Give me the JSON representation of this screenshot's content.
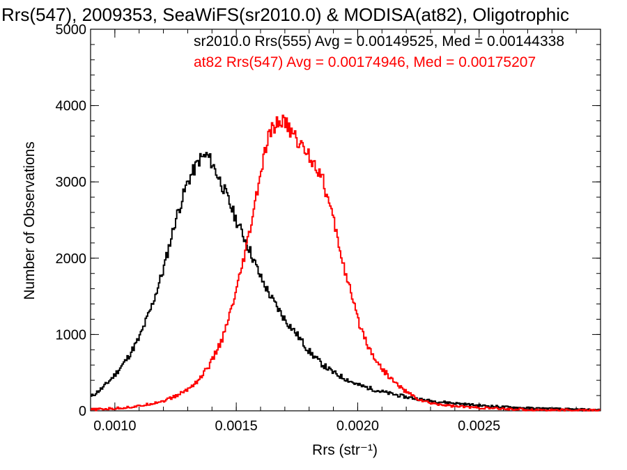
{
  "chart_data": {
    "type": "line",
    "title": "Rrs(547), 2009353, SeaWiFS(sr2010.0) & MODISA(at82), Oligotrophic",
    "xlabel": "Rrs (str⁻¹)",
    "ylabel": "Number of Observations",
    "xlim": [
      0.0009,
      0.003
    ],
    "ylim": [
      0,
      5000
    ],
    "xticks": [
      0.001,
      0.0015,
      0.002,
      0.0025
    ],
    "xtick_labels": [
      "0.0010",
      "0.0015",
      "0.0020",
      "0.0025"
    ],
    "yticks": [
      0,
      1000,
      2000,
      3000,
      4000,
      5000
    ],
    "ytick_labels": [
      "0",
      "1000",
      "2000",
      "3000",
      "4000",
      "5000"
    ],
    "grid": false,
    "legend_position": "top-right",
    "colors": {
      "sr2010": "#000000",
      "at82": "#ff0000"
    },
    "series": [
      {
        "name": "sr2010.0 Rrs(555) Avg = 0.00149525, Med = 0.00144338",
        "color": "#000000",
        "x": [
          0.0009,
          0.00095,
          0.001,
          0.00105,
          0.0011,
          0.00115,
          0.0012,
          0.00125,
          0.0013,
          0.00135,
          0.00138,
          0.0014,
          0.00145,
          0.0015,
          0.00155,
          0.0016,
          0.00165,
          0.0017,
          0.00175,
          0.0018,
          0.00185,
          0.0019,
          0.00195,
          0.002,
          0.0021,
          0.0022,
          0.0023,
          0.0024,
          0.0025,
          0.0026,
          0.0027,
          0.0028,
          0.0029,
          0.003
        ],
        "y": [
          180,
          300,
          470,
          680,
          950,
          1350,
          1850,
          2500,
          3000,
          3300,
          3350,
          3250,
          2900,
          2500,
          2150,
          1750,
          1450,
          1200,
          1000,
          780,
          620,
          500,
          420,
          340,
          250,
          180,
          130,
          100,
          70,
          50,
          35,
          25,
          15,
          10
        ]
      },
      {
        "name": "at82 Rrs(547) Avg = 0.00174946, Med = 0.00175207",
        "color": "#ff0000",
        "x": [
          0.0009,
          0.001,
          0.0011,
          0.0012,
          0.00125,
          0.0013,
          0.00135,
          0.0014,
          0.00145,
          0.0015,
          0.00155,
          0.0016,
          0.00163,
          0.00165,
          0.00168,
          0.0017,
          0.00175,
          0.0018,
          0.00185,
          0.0019,
          0.00195,
          0.002,
          0.00205,
          0.0021,
          0.00215,
          0.0022,
          0.00225,
          0.0023,
          0.0024,
          0.0025,
          0.0026,
          0.0027,
          0.0028,
          0.0029,
          0.003
        ],
        "y": [
          15,
          30,
          60,
          130,
          190,
          280,
          420,
          650,
          1000,
          1550,
          2250,
          3100,
          3550,
          3700,
          3800,
          3780,
          3550,
          3350,
          3100,
          2500,
          1800,
          1200,
          800,
          550,
          380,
          250,
          150,
          100,
          60,
          40,
          25,
          15,
          10,
          8,
          5
        ]
      }
    ]
  }
}
